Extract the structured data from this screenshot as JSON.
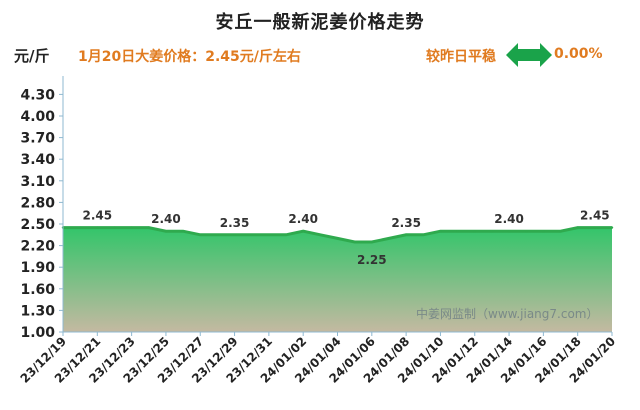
{
  "header": {
    "title": "安丘一般新泥姜价格走势",
    "unit": "元/斤",
    "price_text": "1月20日大姜价格：2.45元/斤左右",
    "compare_label": "较昨日平稳",
    "change_text": "0.00%"
  },
  "watermark": "中姜网监制（www.jiang7.com）",
  "colors": {
    "accent_orange": "#e07b20",
    "line_green": "#2faa4e",
    "fill_top": "#33c56a",
    "fill_bottom": "#c4b9a1",
    "arrow_green": "#1aa34a"
  },
  "icons": {
    "change_indicator": "double-arrow-left-right-icon"
  },
  "chart_data": {
    "type": "area",
    "x": [
      "23/12/19",
      "23/12/20",
      "23/12/21",
      "23/12/22",
      "23/12/23",
      "23/12/24",
      "23/12/25",
      "23/12/26",
      "23/12/27",
      "23/12/28",
      "23/12/29",
      "23/12/30",
      "23/12/31",
      "24/01/01",
      "24/01/02",
      "24/01/03",
      "24/01/04",
      "24/01/05",
      "24/01/06",
      "24/01/07",
      "24/01/08",
      "24/01/09",
      "24/01/10",
      "24/01/11",
      "24/01/12",
      "24/01/13",
      "24/01/14",
      "24/01/15",
      "24/01/16",
      "24/01/17",
      "24/01/18",
      "24/01/19",
      "24/01/20"
    ],
    "values": [
      2.45,
      2.45,
      2.45,
      2.45,
      2.45,
      2.45,
      2.4,
      2.4,
      2.35,
      2.35,
      2.35,
      2.35,
      2.35,
      2.35,
      2.4,
      2.35,
      2.3,
      2.25,
      2.25,
      2.3,
      2.35,
      2.35,
      2.4,
      2.4,
      2.4,
      2.4,
      2.4,
      2.4,
      2.4,
      2.4,
      2.45,
      2.45,
      2.45
    ],
    "x_tick_labels": [
      "23/12/19",
      "23/12/21",
      "23/12/23",
      "23/12/25",
      "23/12/27",
      "23/12/29",
      "23/12/31",
      "24/01/02",
      "24/01/04",
      "24/01/06",
      "24/01/08",
      "24/01/10",
      "24/01/12",
      "24/01/14",
      "24/01/16",
      "24/01/18",
      "24/01/20"
    ],
    "y_ticks": [
      1.0,
      1.3,
      1.6,
      1.9,
      2.2,
      2.5,
      2.8,
      3.1,
      3.4,
      3.7,
      4.0,
      4.3
    ],
    "ylim": [
      1.0,
      4.5
    ],
    "data_labels": [
      {
        "x": "23/12/21",
        "value": "2.45",
        "pos": "above"
      },
      {
        "x": "23/12/25",
        "value": "2.40",
        "pos": "above"
      },
      {
        "x": "23/12/29",
        "value": "2.35",
        "pos": "above"
      },
      {
        "x": "24/01/02",
        "value": "2.40",
        "pos": "above"
      },
      {
        "x": "24/01/06",
        "value": "2.25",
        "pos": "below"
      },
      {
        "x": "24/01/08",
        "value": "2.35",
        "pos": "above"
      },
      {
        "x": "24/01/14",
        "value": "2.40",
        "pos": "above"
      },
      {
        "x": "24/01/19",
        "value": "2.45",
        "pos": "above"
      }
    ],
    "grid": false,
    "ylabel": "元/斤"
  }
}
